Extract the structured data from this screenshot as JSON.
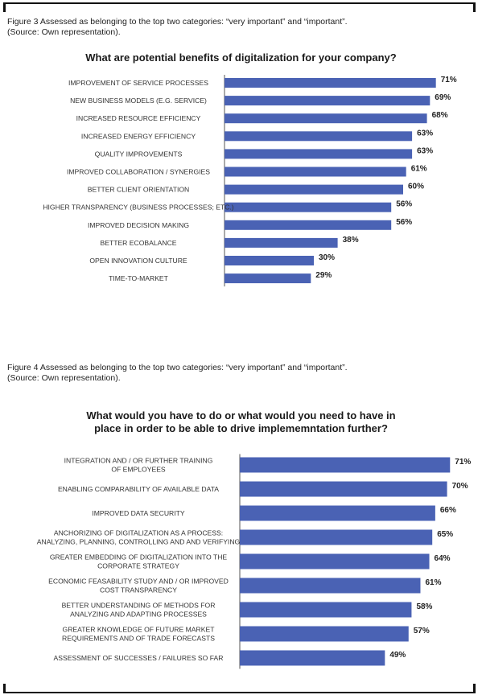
{
  "figures": [
    {
      "caption_line1": "Figure 3 Assessed as belonging to the top two categories: “very important” and “important”.",
      "caption_line2": "(Source: Own representation)."
    },
    {
      "caption_line1": "Figure 4 Assessed as belonging to the top two categories: “very important” and “important”.",
      "caption_line2": "(Source: Own representation)."
    }
  ],
  "chart_data": [
    {
      "type": "bar",
      "orientation": "horizontal",
      "title": "What are potential benefits of digitalization for your company?",
      "categories": [
        [
          "IMPROVEMENT OF SERVICE PROCESSES"
        ],
        [
          "NEW BUSINESS MODELS (E.G. SERVICE)"
        ],
        [
          "INCREASED RESOURCE EFFICIENCY"
        ],
        [
          "INCREASED ENERGY EFFICIENCY"
        ],
        [
          "QUALITY IMPROVEMENTS"
        ],
        [
          "IMPROVED COLLABORATION / SYNERGIES"
        ],
        [
          "BETTER CLIENT ORIENTATION"
        ],
        [
          "HIGHER TRANSPARENCY (BUSINESS PROCESSES; ETC.)"
        ],
        [
          "IMPROVED DECISION MAKING"
        ],
        [
          "BETTER ECOBALANCE"
        ],
        [
          "OPEN INNOVATION CULTURE"
        ],
        [
          "TIME-TO-MARKET"
        ]
      ],
      "values": [
        71,
        69,
        68,
        63,
        63,
        61,
        60,
        56,
        56,
        38,
        30,
        29
      ],
      "value_labels": [
        "71%",
        "69%",
        "68%",
        "63%",
        "63%",
        "61%",
        "60%",
        "56%",
        "56%",
        "38%",
        "30%",
        "29%"
      ],
      "unit": "%",
      "bar_color": "#4a62b4"
    },
    {
      "type": "bar",
      "orientation": "horizontal",
      "title": "What would you have to do or what would you need to have in place in order to be able to drive implememntation further?",
      "title_lines": [
        "What would you have to do or what would you need to have in",
        "place in order to be able to drive implememntation further?"
      ],
      "categories": [
        [
          "INTEGRATION AND / OR FURTHER TRAINING",
          "OF EMPLOYEES"
        ],
        [
          "ENABLING COMPARABILITY OF AVAILABLE DATA"
        ],
        [
          "IMPROVED DATA SECURITY"
        ],
        [
          "ANCHORIZING OF DIGITALIZATION AS A PROCESS:",
          "ANALYZING, PLANNING, CONTROLLING AND AND VERIFYING"
        ],
        [
          "GREATER EMBEDDING OF DIGITALIZATION INTO THE",
          "CORPORATE STRATEGY"
        ],
        [
          "ECONOMIC FEASABILITY STUDY AND / OR IMPROVED",
          "COST TRANSPARENCY"
        ],
        [
          "BETTER UNDERSTANDING OF METHODS FOR",
          "ANALYZING AND ADAPTING PROCESSES"
        ],
        [
          "GREATER KNOWLEDGE OF FUTURE MARKET",
          "REQUIREMENTS AND OF TRADE FORECASTS"
        ],
        [
          "ASSESSMENT OF SUCCESSES / FAILURES SO FAR"
        ]
      ],
      "values": [
        71,
        70,
        66,
        65,
        64,
        61,
        58,
        57,
        49
      ],
      "value_labels": [
        "71%",
        "70%",
        "66%",
        "65%",
        "64%",
        "61%",
        "58%",
        "57%",
        "49%"
      ],
      "unit": "%",
      "bar_color": "#4a62b4"
    }
  ]
}
